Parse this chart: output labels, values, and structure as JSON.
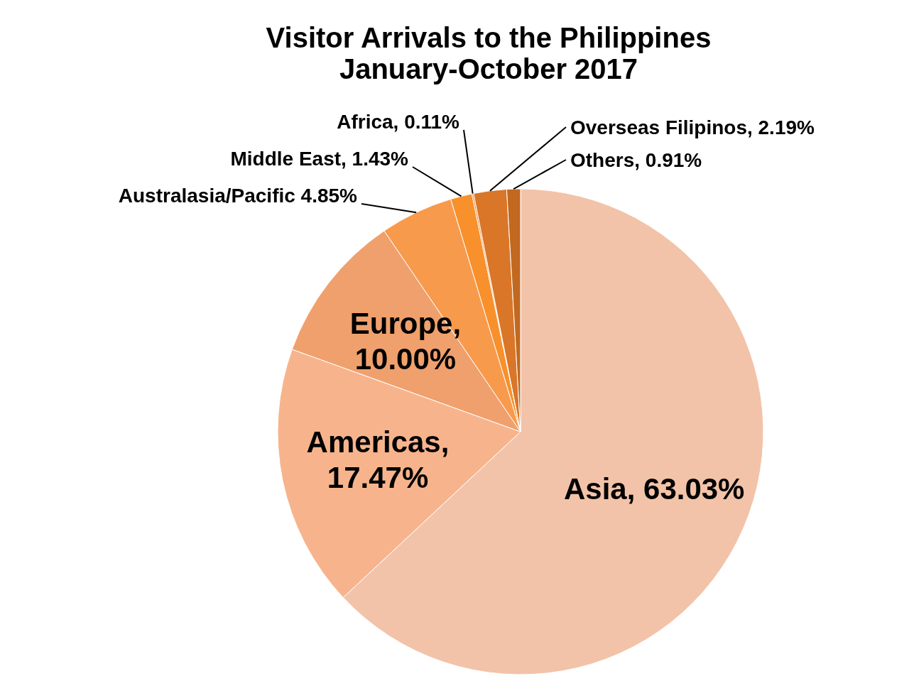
{
  "chart_data": {
    "type": "pie",
    "title": "Visitor Arrivals to the Philippines",
    "subtitle": "January-October 2017",
    "categories": [
      "Asia",
      "Americas",
      "Europe",
      "Australasia/Pacific",
      "Middle East",
      "Africa",
      "Overseas Filipinos",
      "Others"
    ],
    "values": [
      63.03,
      17.47,
      10.0,
      4.85,
      1.43,
      0.11,
      2.19,
      0.91
    ],
    "colors": [
      "#f2c3a8",
      "#f7b48c",
      "#f0a06c",
      "#f89a4c",
      "#f8902c",
      "#ec8a36",
      "#d97628",
      "#c2691f"
    ],
    "value_labels": [
      ", 63.03%",
      ", 17.47%",
      ", 10.00%",
      " 4.85%",
      ", 1.43%",
      ", 0.11%",
      ", 2.19%",
      ", 0.91%"
    ],
    "legend": false
  }
}
